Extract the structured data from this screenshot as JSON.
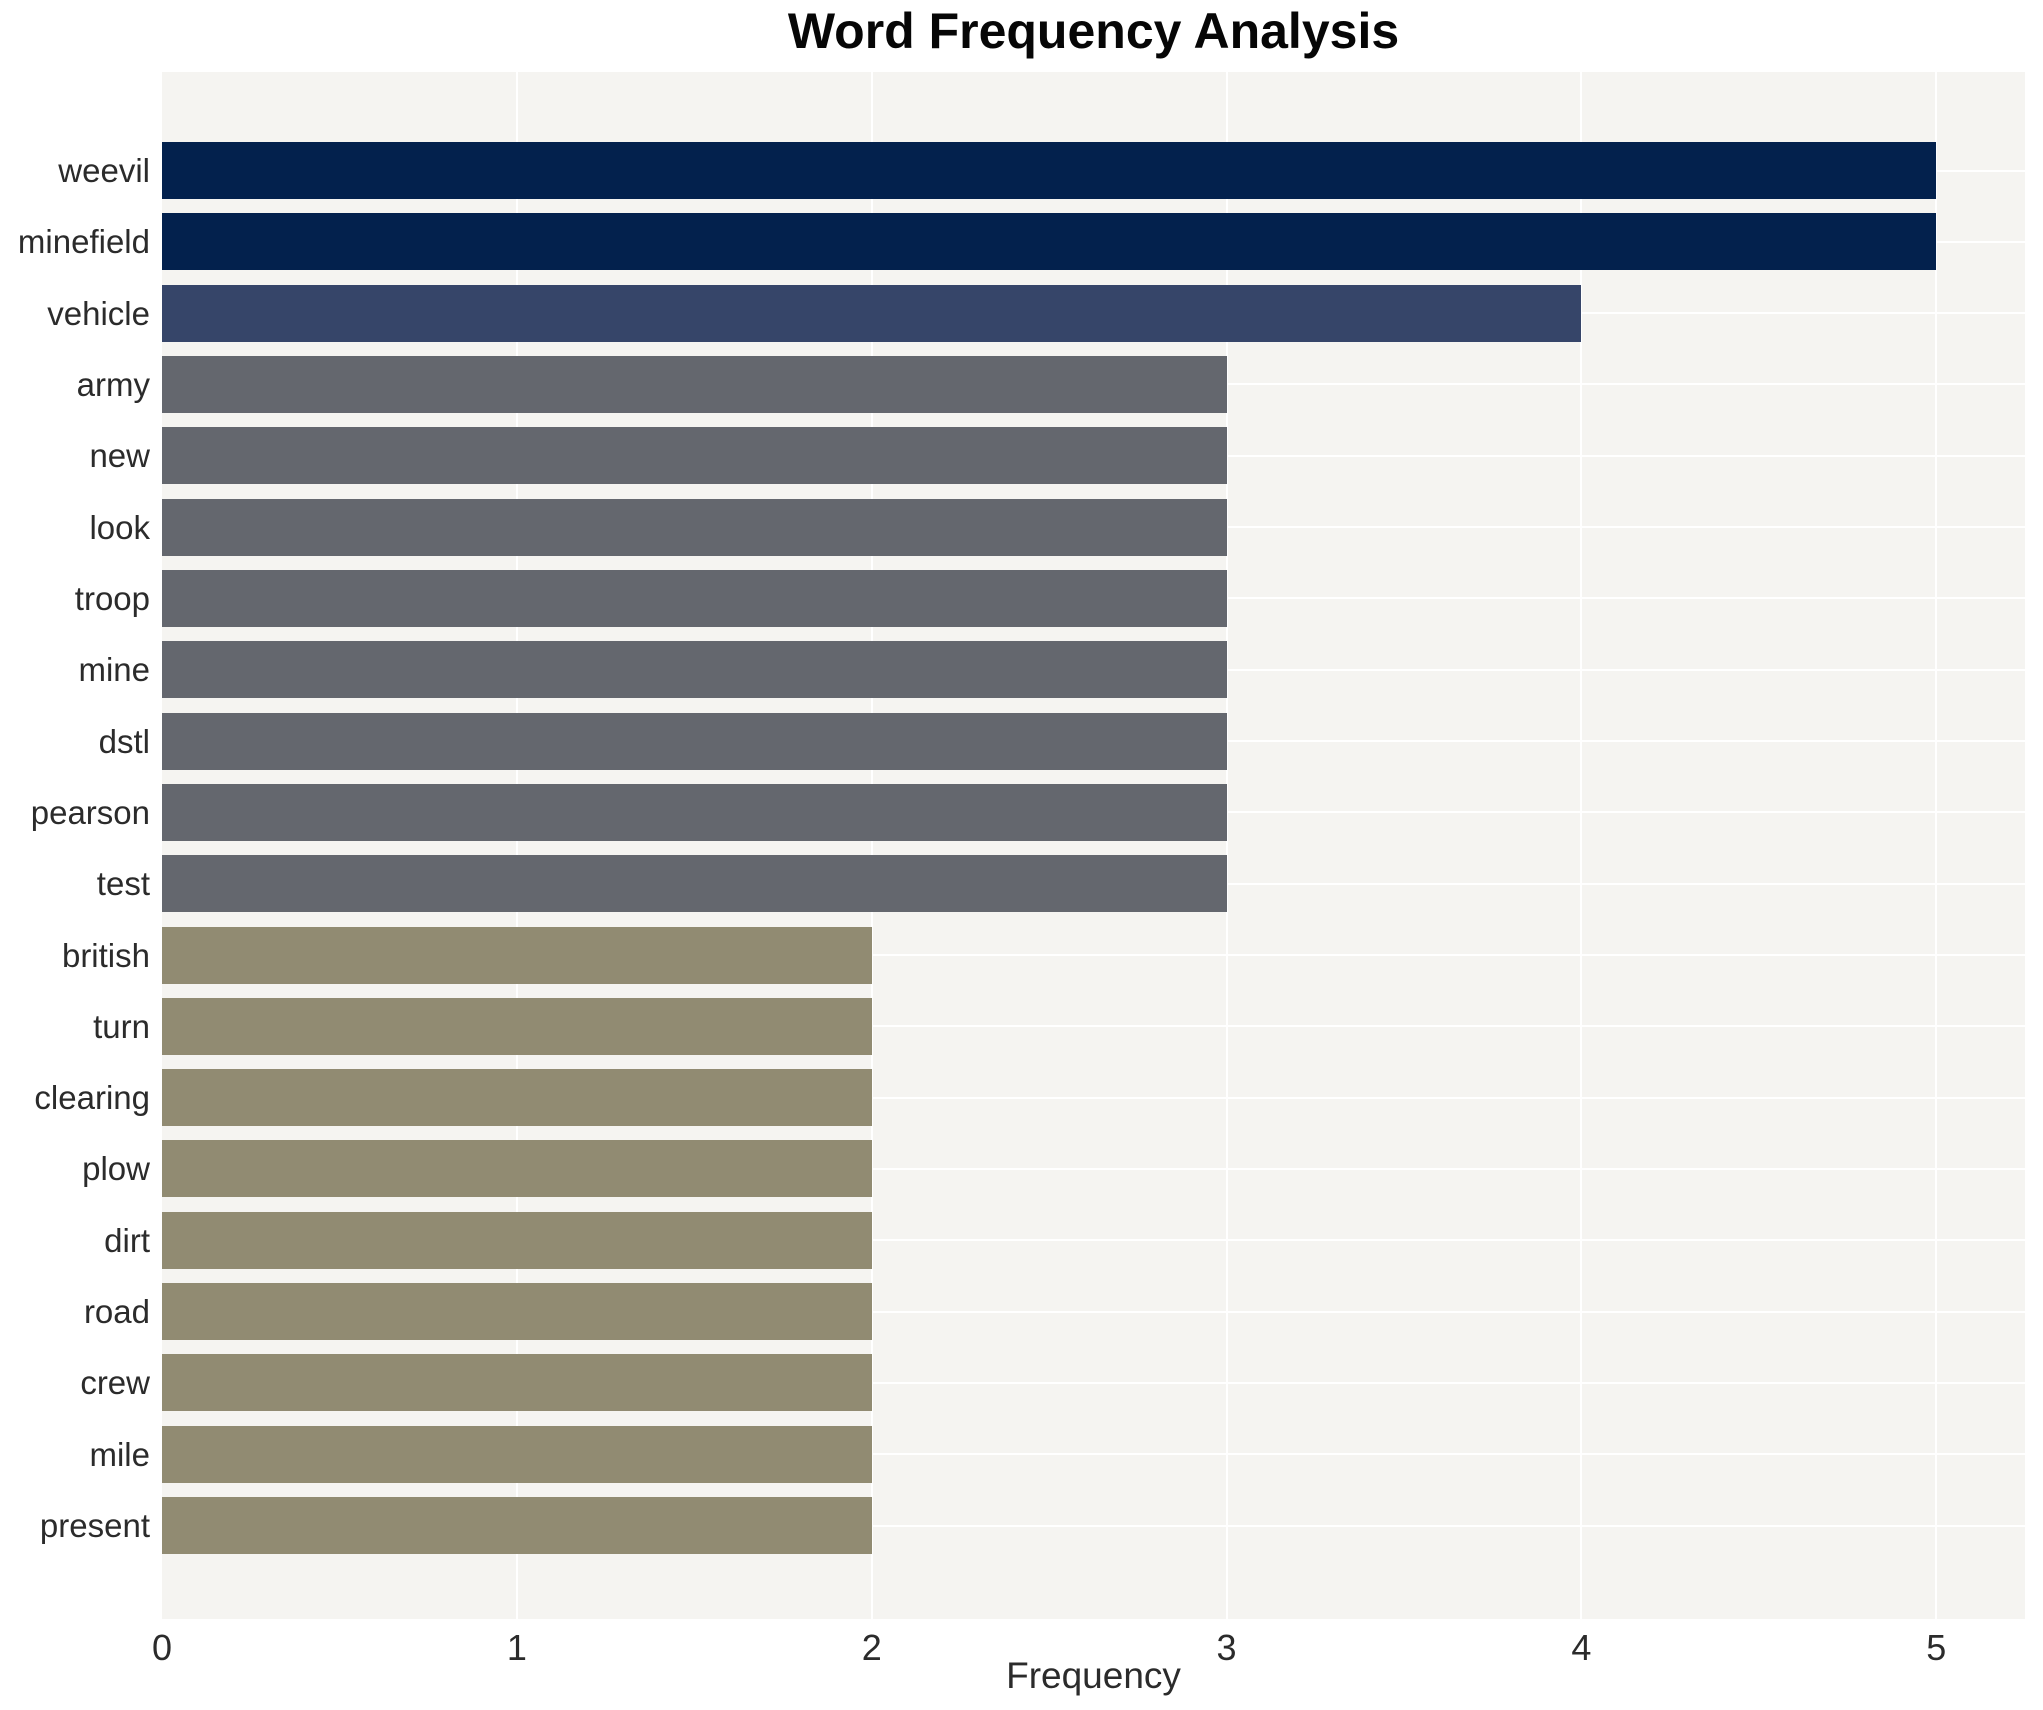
{
  "chart_data": {
    "type": "bar",
    "orientation": "horizontal",
    "title": "Word Frequency Analysis",
    "xlabel": "Frequency",
    "ylabel": "",
    "grid": true,
    "legend": false,
    "xlim": [
      0,
      5.25
    ],
    "xticks": [
      "0",
      "1",
      "2",
      "3",
      "4",
      "5"
    ],
    "categories": [
      "weevil",
      "minefield",
      "vehicle",
      "army",
      "new",
      "look",
      "troop",
      "mine",
      "dstl",
      "pearson",
      "test",
      "british",
      "turn",
      "clearing",
      "plow",
      "dirt",
      "road",
      "crew",
      "mile",
      "present"
    ],
    "values": [
      5,
      5,
      4,
      3,
      3,
      3,
      3,
      3,
      3,
      3,
      3,
      2,
      2,
      2,
      2,
      2,
      2,
      2,
      2,
      2
    ],
    "bar_colors": [
      "#03214d",
      "#03214d",
      "#364569",
      "#64676e",
      "#64676e",
      "#64676e",
      "#64676e",
      "#64676e",
      "#64676e",
      "#64676e",
      "#64676e",
      "#918b72",
      "#918b72",
      "#918b72",
      "#918b72",
      "#918b72",
      "#918b72",
      "#918b72",
      "#918b72",
      "#918b72"
    ],
    "colors": {
      "plot_background": "#f5f4f1",
      "figure_background": "#ffffff",
      "gridline": "#ffffff",
      "text": "#2b2b2b",
      "title_text": "#060606"
    }
  }
}
